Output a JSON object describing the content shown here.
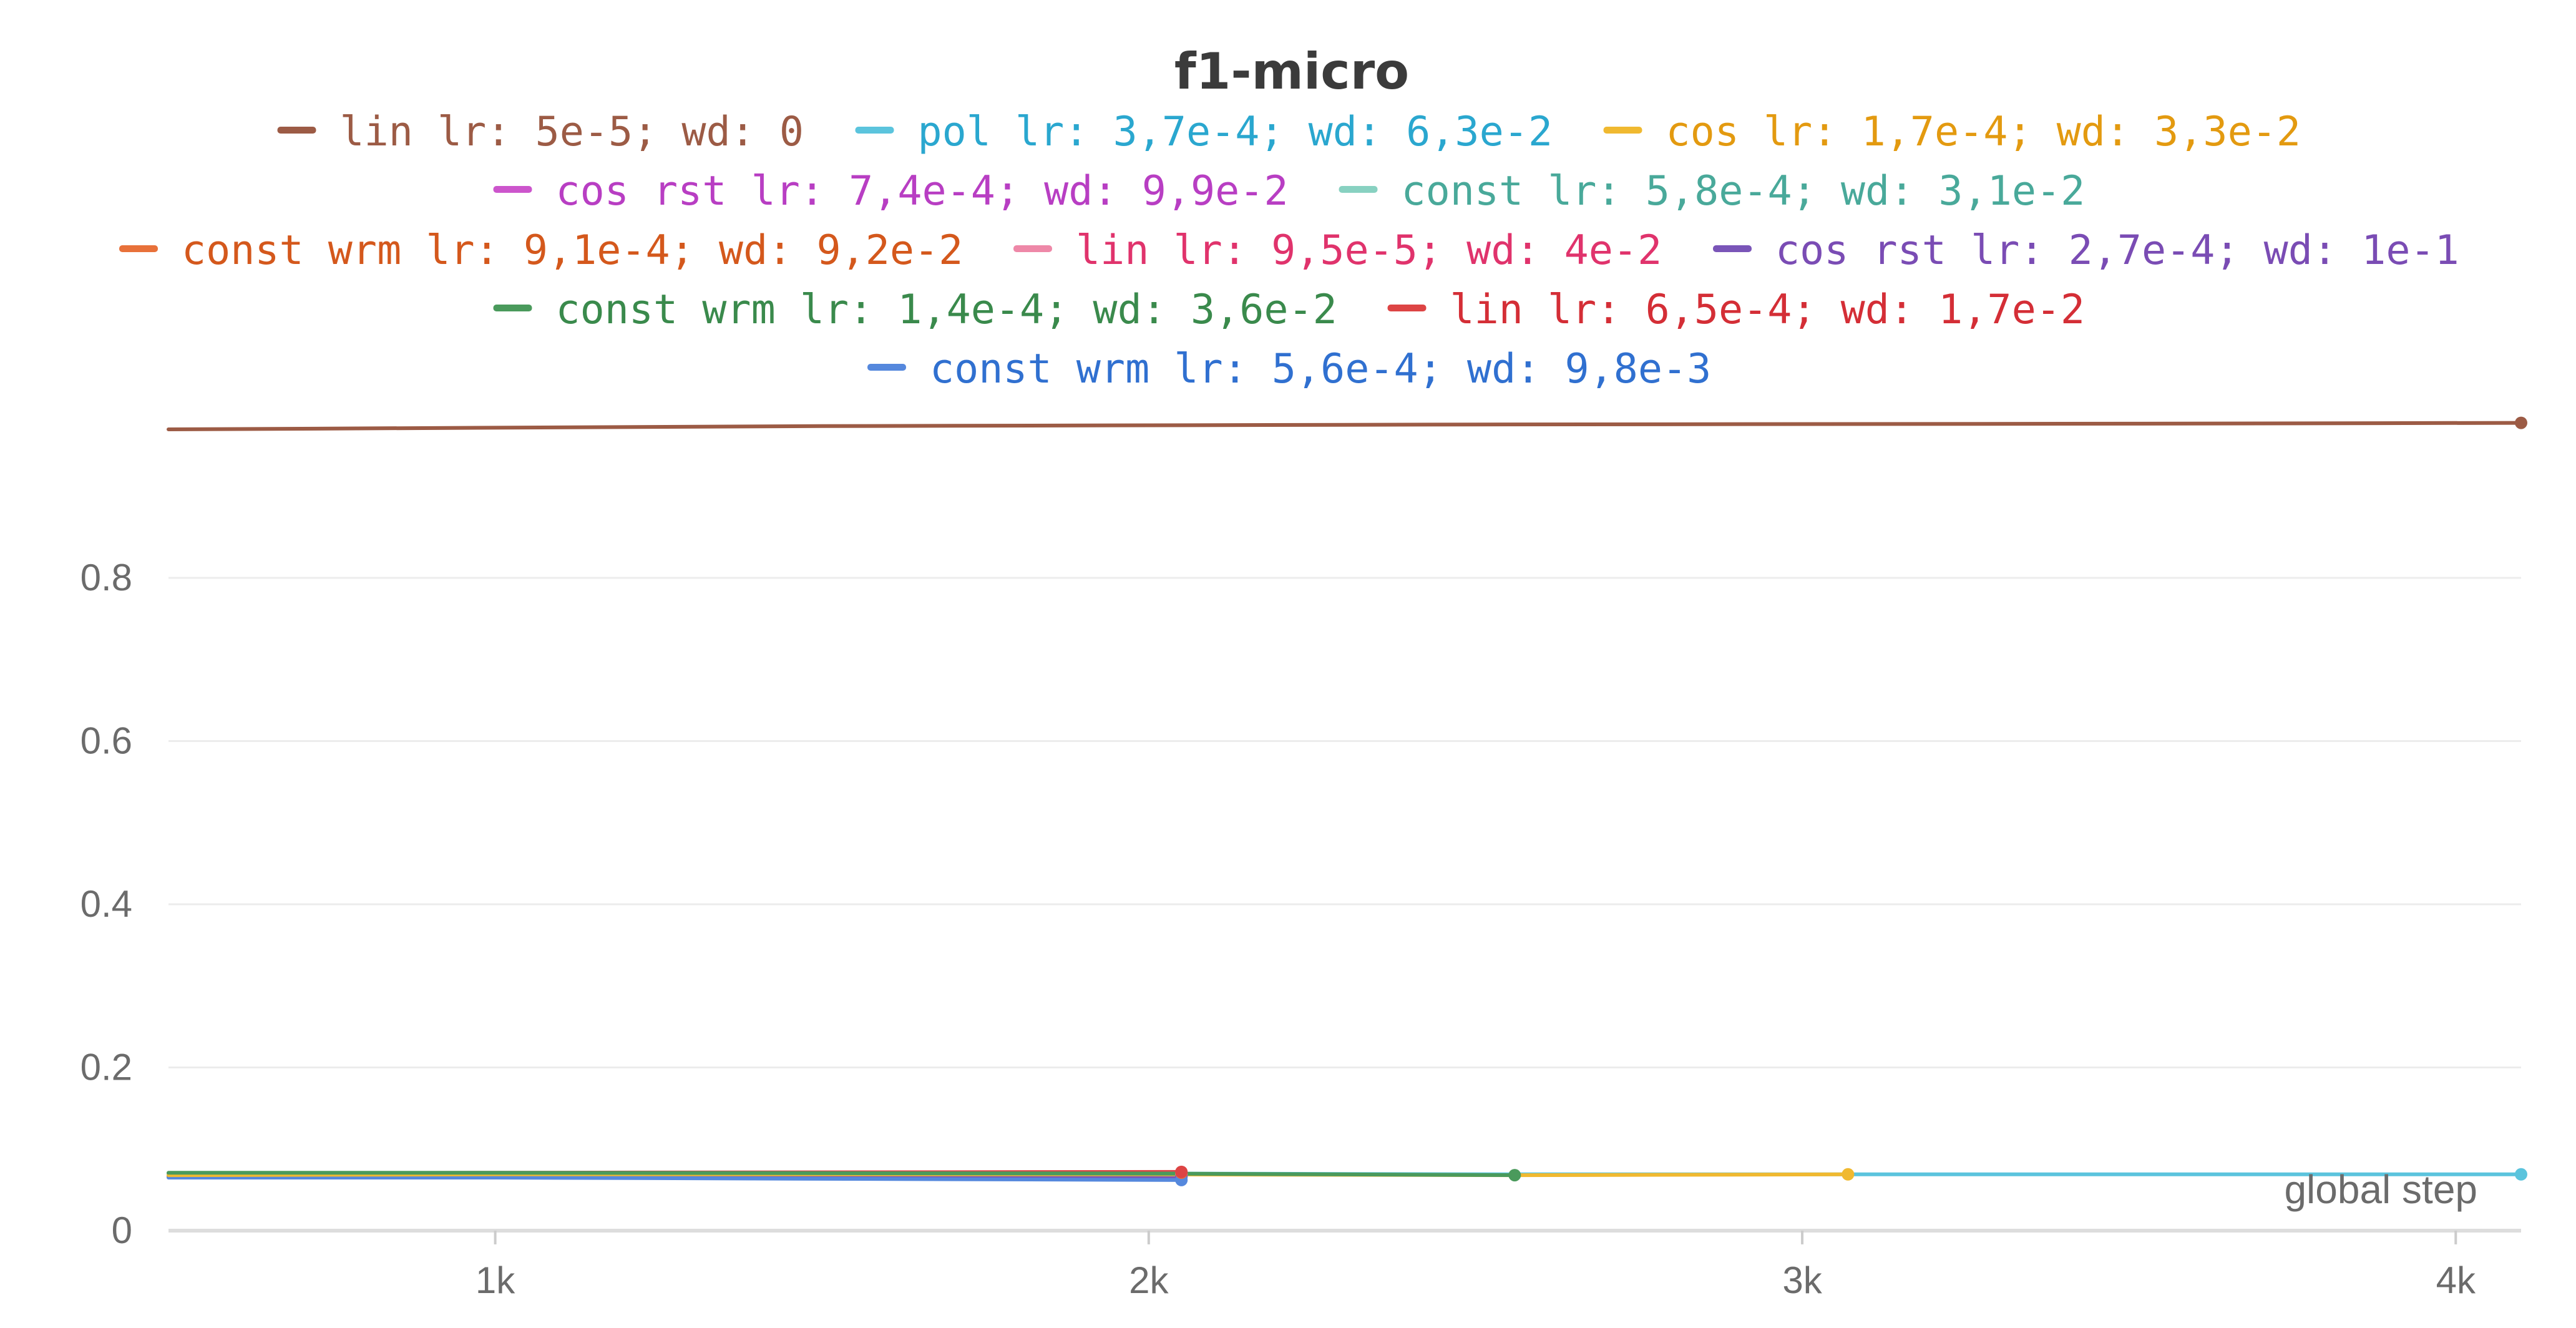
{
  "chart_data": {
    "type": "line",
    "title": "f1-micro",
    "xlabel": "global step",
    "ylabel": "",
    "xlim": [
      500,
      4100
    ],
    "ylim": [
      0,
      1.0
    ],
    "grid": true,
    "legend_position": "top",
    "x_ticks": [
      {
        "value": 1000,
        "label": "1k"
      },
      {
        "value": 2000,
        "label": "2k"
      },
      {
        "value": 3000,
        "label": "3k"
      },
      {
        "value": 4000,
        "label": "4k"
      }
    ],
    "y_ticks": [
      {
        "value": 0,
        "label": "0"
      },
      {
        "value": 0.2,
        "label": "0.2"
      },
      {
        "value": 0.4,
        "label": "0.4"
      },
      {
        "value": 0.6,
        "label": "0.6"
      },
      {
        "value": 0.8,
        "label": "0.8"
      }
    ],
    "legend_rows": [
      [
        0,
        1,
        2
      ],
      [
        3,
        4
      ],
      [
        5,
        6,
        7
      ],
      [
        8,
        9
      ],
      [
        10
      ]
    ],
    "series": [
      {
        "name": "lin lr: 5e-5; wd: 0",
        "color": "#9c5b45",
        "text_color": "#9c5b45",
        "x": [
          500,
          1500,
          2500,
          3500,
          4100
        ],
        "y": [
          0.982,
          0.986,
          0.988,
          0.989,
          0.99
        ]
      },
      {
        "name": "pol lr: 3,7e-4; wd: 6,3e-2",
        "color": "#5bc4dd",
        "text_color": "#2aa7cf",
        "x": [
          500,
          1000,
          2000,
          2560,
          3070,
          4100
        ],
        "y": [
          0.069,
          0.07,
          0.07,
          0.069,
          0.069,
          0.069
        ]
      },
      {
        "name": "cos lr: 1,7e-4; wd: 3,3e-2",
        "color": "#f0b930",
        "text_color": "#e39a10",
        "x": [
          500,
          1000,
          2000,
          2560,
          3070
        ],
        "y": [
          0.068,
          0.069,
          0.069,
          0.068,
          0.069
        ]
      },
      {
        "name": "cos rst lr: 7,4e-4; wd: 9,9e-2",
        "color": "#cc55cc",
        "text_color": "#b83ec3",
        "x": [
          500,
          2050
        ],
        "y": [
          0.067,
          0.068
        ]
      },
      {
        "name": "const lr: 5,8e-4; wd: 3,1e-2",
        "color": "#88d1c1",
        "text_color": "#49a99a",
        "x": [
          500,
          2050
        ],
        "y": [
          0.068,
          0.069
        ]
      },
      {
        "name": "const wrm lr: 9,1e-4; wd: 9,2e-2",
        "color": "#e8713a",
        "text_color": "#d4581c",
        "x": [
          500,
          2050
        ],
        "y": [
          0.07,
          0.071
        ]
      },
      {
        "name": "lin lr: 9,5e-5; wd: 4e-2",
        "color": "#ee88a8",
        "text_color": "#e0336c",
        "x": [
          500,
          2050
        ],
        "y": [
          0.069,
          0.07
        ]
      },
      {
        "name": "cos rst lr: 2,7e-4; wd: 1e-1",
        "color": "#7a55b8",
        "text_color": "#7a4cb4",
        "x": [
          500,
          2050
        ],
        "y": [
          0.066,
          0.066
        ]
      },
      {
        "name": "const wrm lr: 1,4e-4; wd: 3,6e-2",
        "color": "#4a9a5c",
        "text_color": "#3a8a4c",
        "x": [
          500,
          1000,
          2000,
          2560
        ],
        "y": [
          0.071,
          0.071,
          0.07,
          0.068
        ]
      },
      {
        "name": "lin lr: 6,5e-4; wd: 1,7e-2",
        "color": "#dd4444",
        "text_color": "#d42e36",
        "x": [
          500,
          1000,
          2050
        ],
        "y": [
          0.07,
          0.071,
          0.072
        ]
      },
      {
        "name": "const wrm lr: 5,6e-4; wd: 9,8e-3",
        "color": "#5588dd",
        "text_color": "#3070d0",
        "x": [
          500,
          1000,
          2050
        ],
        "y": [
          0.065,
          0.065,
          0.062
        ]
      }
    ]
  }
}
